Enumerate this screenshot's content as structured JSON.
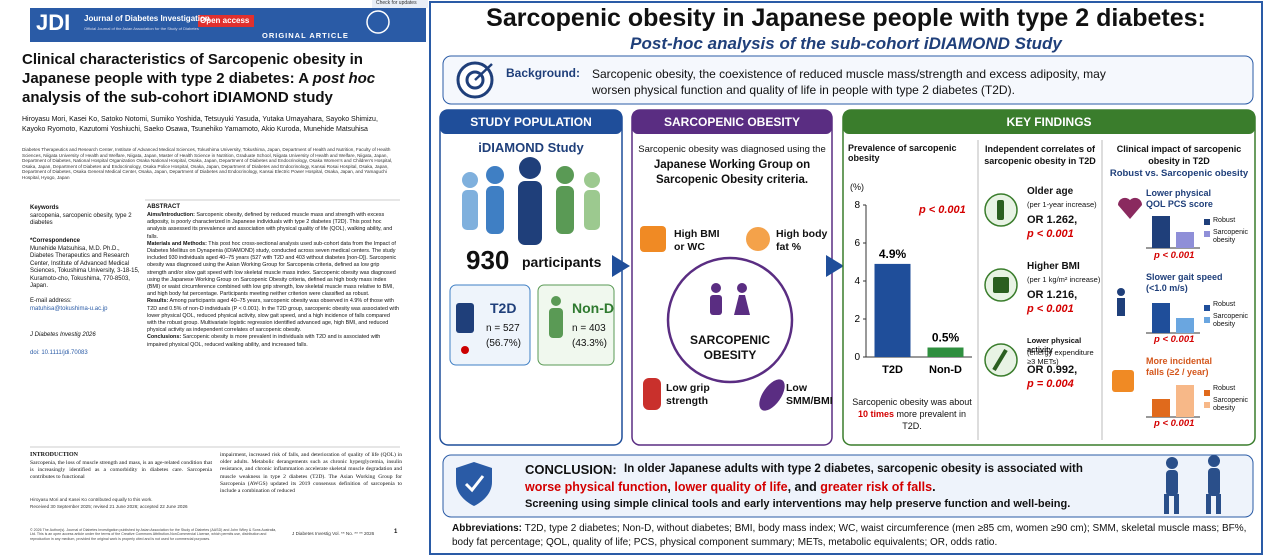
{
  "paper": {
    "journal_abbr": "JDI",
    "journal_name": "Journal of Diabetes Investigation",
    "open_access": "Open access",
    "journal_sub": "Official Journal of the Asian Association for the Study of Diabetes",
    "check_updates": "Check for updates",
    "article_type": "ORIGINAL ARTICLE",
    "title": [
      "Clinical characteristics of Sarcopenic obesity in Japanese people with type 2 diabetes: A ",
      "post hoc",
      " analysis of the sub-cohort iDIAMOND study"
    ],
    "authors": "Hiroyasu Mori, Kasei Ko, Satoko Notomi, Sumiko Yoshida, Tetsuyuki Yasuda, Yutaka Umayahara, Sayoko Shimizu, Kayoko Ryomoto, Kazutomi Yoshiuchi, Saeko Osawa, Tsunehiko Yamamoto, Akio Kuroda, Munehide Matsuhisa",
    "affiliations": "Diabetes Therapeutics and Research Center, Institute of Advanced Medical Sciences, Tokushima University, Tokushima, Japan, Department of Health and Nutrition, Faculty of Health Sciences, Niigata University of Health and Welfare, Niigata, Japan, Master of Health Science in Nutrition, Graduate School, Niigata University of Health and Welfare, Niigata, Japan, Department of Diabetes, National Hospital Organization Osaka National Hospital, Osaka, Japan, Department of Diabetes and Endocrinology, Osaka Women's and Children's Hospital, Osaka, Japan, Department of Diabetes and Endocrinology, Osaka Police Hospital, Osaka, Japan, Department of Diabetes and Endocrinology, Kansai Rosai Hospital, Osaka, Japan, Department of Diabetes, Osaka General Medical Center, Osaka, Japan, Department of Diabetes and Endocrinology, Kansai Electric Power Hospital, Osaka, Japan, and Yamaguchi Hospital, Hyogo, Japan",
    "keywords_heading": "Keywords",
    "keywords": "sarcopenia, sarcopenic obesity, type 2 diabetes",
    "correspondence_heading": "*Correspondence",
    "correspondence": "Munehide Matsuhisa, M.D. Ph.D., Diabetes Therapeutics and Research Center, Institute of Advanced Medical Sciences, Tokushima University, 3-18-15, Kuramoto-cho, Tokushima, 770-8503, Japan.",
    "email_label": "E-mail address:",
    "email": "matuhisa@tokushima-u.ac.jp",
    "citation": "J Diabetes Investig 2026",
    "doi": "doi: 10.1111/jdi.70083",
    "abstract_heading": "ABSTRACT",
    "abstract": [
      {
        "label": "Aims/Introduction:",
        "text": " Sarcopenic obesity, defined by reduced muscle mass and strength with excess adiposity, is poorly characterized in Japanese individuals with type 2 diabetes (T2D). This post hoc analysis assessed its prevalence and association with physical quality of life (QOL), walking ability, and falls."
      },
      {
        "label": "Materials and Methods:",
        "text": " This post hoc cross-sectional analysis used sub-cohort data from the Impact of Diabetes Mellitus on Dynapenia (iDIAMOND) study, conducted across seven medical centers. The study included 930 individuals aged 40–75 years (527 with T2D and 403 without diabetes [non-D]). Sarcopenic obesity was diagnosed using the Asian Working Group for Sarcopenia criteria, defined as low grip strength and/or slow gait speed with low skeletal muscle mass index. Sarcopenic obesity was diagnosed using the Japanese Working Group on Sarcopenic Obesity criteria, defined as high body mass index (BMI) or waist circumference combined with low grip strength, low skeletal muscle mass relative to BMI, and high body fat percentage. Participants meeting neither criterion were classified as robust."
      },
      {
        "label": "Results:",
        "text": " Among participants aged 40–75 years, sarcopenic obesity was observed in 4.9% of those with T2D and 0.5% of non-D individuals (P < 0.001). In the T2D group, sarcopenic obesity was associated with lower physical QOL, reduced physical activity, slow gait speed, and a high incidence of falls compared with the robust group. Multivariate logistic regression identified advanced age, high BMI, and reduced physical activity as independent correlates of sarcopenic obesity."
      },
      {
        "label": "Conclusions:",
        "text": " Sarcopenic obesity is more prevalent in individuals with T2D and is associated with impaired physical QOL, reduced walking ability, and increased falls."
      }
    ],
    "intro_heading": "INTRODUCTION",
    "intro": [
      "Sarcopenia, the loss of muscle strength and mass, is an age-related condition that is increasingly identified as a comorbidity in diabetes care. Sarcopenia contributes to functional",
      "impairment, increased risk of falls, and deterioration of quality of life (QOL) in older adults. Metabolic derangements such as chronic hyperglycemia, insulin resistance, and chronic inflammation accelerate skeletal muscle degradation and muscle weakness in type 2 diabetes (T2D). The Asian Working Group for Sarcopenia (AWGS) updated its 2019 consensus definition of sarcopenia to include a combination of reduced"
    ],
    "footnote": "Hiroyasu Mori and Kasei Ko contributed equally to this work.",
    "received": "Received 30 September 2025; revised 21 June 2026; accepted 22 June 2026",
    "license": "© 2026 The Author(s). Journal of Diabetes Investigation published by Asian Association for the Study of Diabetes (AASD) and John Wiley & Sons Australia, Ltd. This is an open access article under the terms of the Creative Commons Attribution-NonCommercial License, which permits use, distribution and reproduction in any medium, provided the original work is properly cited and is not used for commercial purposes.",
    "footer_journal": "J Diabetes Investig Vol. ** No. ** ** 2026",
    "page": "1"
  },
  "graphic": {
    "title": "Sarcopenic obesity in Japanese people with type 2 diabetes:",
    "subtitle": "Post-hoc analysis of the sub-cohort iDIAMOND Study",
    "background_label": "Background:",
    "background_text": "Sarcopenic obesity, the coexistence of reduced muscle mass/strength and excess adiposity, may worsen physical function and quality of life in people with type 2 diabetes (T2D).",
    "population": {
      "heading": "STUDY POPULATION",
      "study": "iDIAMOND Study",
      "total": "930",
      "total_label": "participants",
      "groups": [
        {
          "name": "T2D",
          "n": "n = 527",
          "pct": "(56.7%)"
        },
        {
          "name": "Non-D",
          "n": "n = 403",
          "pct": "(43.3%)"
        }
      ]
    },
    "sarcopenic": {
      "heading": "SARCOPENIC OBESITY",
      "intro": "Sarcopenic obesity was diagnosed using the",
      "criteria_name": "Japanese Working Group on Sarcopenic Obesity criteria.",
      "center": "SARCOPENIC OBESITY",
      "criteria": [
        "High BMI or WC",
        "High body fat %",
        "Low grip strength",
        "Low SMM/BMI"
      ]
    },
    "findings": {
      "heading": "KEY FINDINGS",
      "prevalence": {
        "heading": "Prevalence of sarcopenic obesity",
        "chart": {
          "type": "bar",
          "y_label": "(%)",
          "categories": [
            "T2D",
            "Non-D"
          ],
          "values": [
            4.9,
            0.5
          ],
          "value_labels": [
            "4.9%",
            "0.5%"
          ],
          "colors": [
            "#1f4e9a",
            "#2f8f3f"
          ],
          "ylim": [
            0,
            8
          ],
          "yticks": [
            0,
            2,
            4,
            6,
            8
          ],
          "annotation": "p < 0.001"
        },
        "note": [
          "Sarcopenic obesity was about",
          "10 times",
          " more prevalent in T2D."
        ]
      },
      "correlates": {
        "heading": "Independent correlates of sarcopenic obesity in T2D",
        "items": [
          {
            "name": "Older age",
            "detail": "(per 1-year increase)",
            "or": "OR 1.262,",
            "p": "p < 0.001"
          },
          {
            "name": "Higher BMI",
            "detail": "(per 1 kg/m² increase)",
            "or": "OR 1.216,",
            "p": "p < 0.001"
          },
          {
            "name": "Lower physical activity",
            "detail": "(energy expenditure ≥3 METs)",
            "or": "OR 0.992,",
            "p": "p = 0.004"
          }
        ]
      },
      "impact": {
        "heading": "Clinical impact of sarcopenic obesity in T2D",
        "subheading": "Robust vs. Sarcopenic obesity",
        "legend": [
          "Robust",
          "Sarcopenic obesity"
        ],
        "items": [
          {
            "name": "Lower physical QOL PCS score",
            "p": "p < 0.001"
          },
          {
            "name": "Slower gait speed (<1.0 m/s)",
            "p": "p < 0.001"
          },
          {
            "name": "More incidental falls (≥2 / year)",
            "p": "p < 0.001"
          }
        ]
      }
    },
    "conclusion": {
      "label": "CONCLUSION:",
      "line1": "In older Japanese adults with type 2 diabetes, sarcopenic obesity is associated with",
      "line2": [
        "worse physical function",
        ", ",
        "lower quality of life",
        ", and ",
        "greater risk of falls",
        "."
      ],
      "line3": "Screening using simple clinical tools and early interventions may help preserve function and well-being."
    },
    "abbreviations_label": "Abbreviations:",
    "abbreviations": "T2D, type 2 diabetes; Non-D, without diabetes; BMI, body mass index; WC, waist circumference (men ≥85 cm, women ≥90 cm); SMM, skeletal muscle mass; BF%, body fat percentage; QOL, quality of life; PCS, physical component summary; METs, metabolic equivalents; OR, odds ratio."
  }
}
